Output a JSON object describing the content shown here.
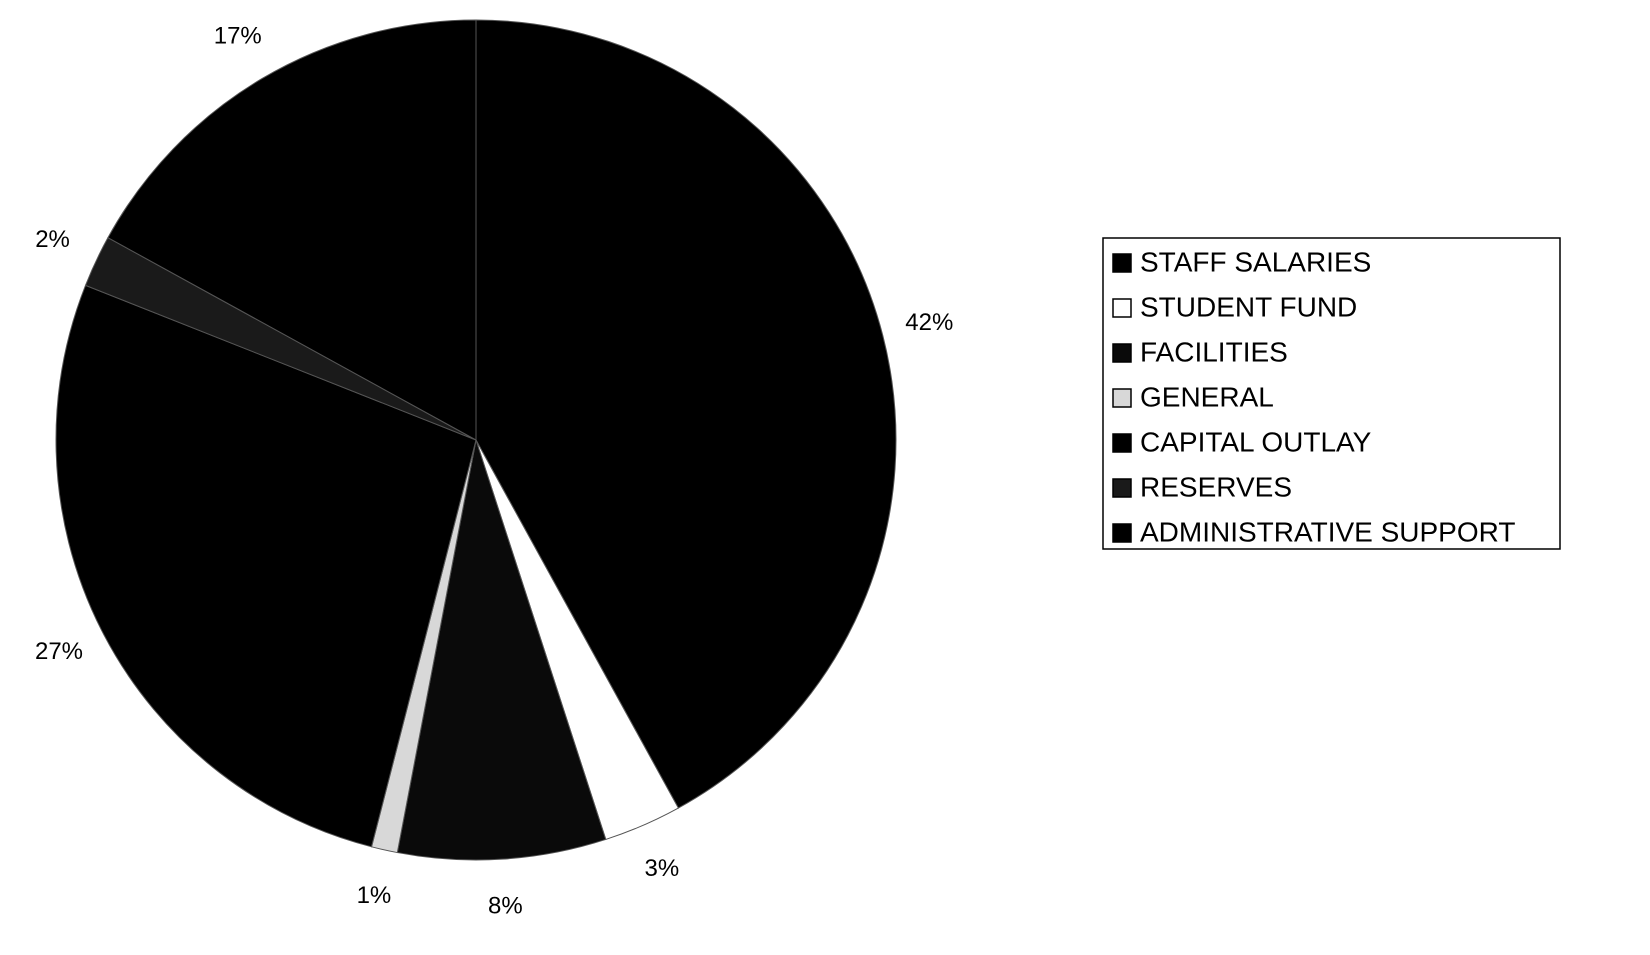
{
  "chart_data": {
    "type": "pie",
    "categories": [
      "STAFF SALARIES",
      "STUDENT FUND",
      "FACILITIES",
      "GENERAL",
      "CAPITAL OUTLAY",
      "RESERVES",
      "ADMINISTRATIVE SUPPORT"
    ],
    "values": [
      42,
      3,
      8,
      1,
      27,
      2,
      17
    ],
    "value_labels": [
      "42%",
      "3%",
      "8%",
      "1%",
      "27%",
      "2%",
      "17%"
    ],
    "colors": [
      "#000000",
      "#ffffff",
      "#0a0a0a",
      "#d8d8d8",
      "#000000",
      "#1a1a1a",
      "#000000"
    ],
    "legend": "right"
  }
}
